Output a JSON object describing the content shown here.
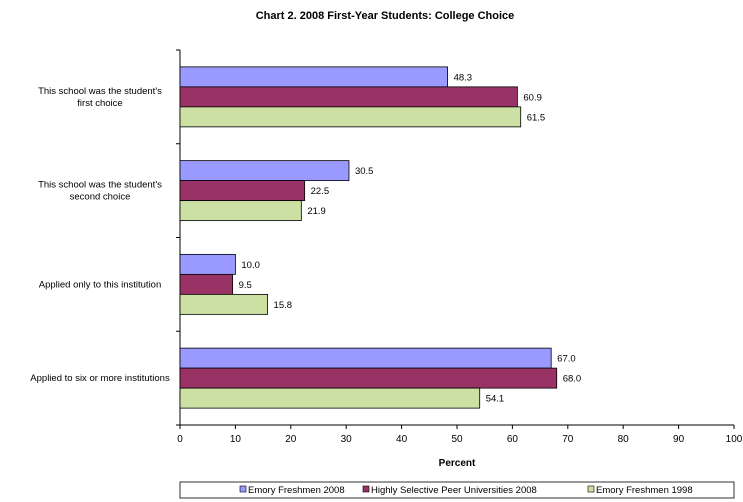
{
  "chart_data": {
    "type": "bar",
    "orientation": "horizontal",
    "title": "Chart 2.  2008 First-Year Students:  College Choice",
    "xlabel": "Percent",
    "ylabel": "",
    "xlim": [
      0,
      100
    ],
    "xticks": [
      "0",
      "10",
      "20",
      "30",
      "40",
      "50",
      "60",
      "70",
      "80",
      "90",
      "100"
    ],
    "categories": [
      [
        "This school was the student's",
        "first choice"
      ],
      [
        "This school was the student's",
        "second choice"
      ],
      [
        "Applied only to this institution"
      ],
      [
        "Applied to six or more institutions"
      ]
    ],
    "series": [
      {
        "name": "Emory Freshmen 2008",
        "color": "#9999ff",
        "values": [
          48.3,
          30.5,
          10.0,
          67.0
        ],
        "labels": [
          "48.3",
          "30.5",
          "10.0",
          "67.0"
        ]
      },
      {
        "name": "Highly Selective Peer Universities 2008",
        "color": "#993366",
        "values": [
          60.9,
          22.5,
          9.5,
          68.0
        ],
        "labels": [
          "60.9",
          "22.5",
          "9.5",
          "68.0"
        ]
      },
      {
        "name": "Emory Freshmen 1998",
        "color": "#cce0a4",
        "values": [
          61.5,
          21.9,
          15.8,
          54.1
        ],
        "labels": [
          "61.5",
          "21.9",
          "15.8",
          "54.1"
        ]
      }
    ],
    "grid": false,
    "legend": "bottom"
  }
}
